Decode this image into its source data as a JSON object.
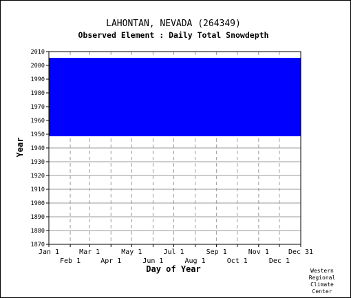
{
  "chart_data": {
    "type": "heatmap",
    "title": "LAHONTAN, NEVADA   (264349)",
    "subtitle": "Observed Element : Daily Total Snowdepth",
    "xlabel": "Day of Year",
    "ylabel": "Year",
    "ylim": [
      1870,
      2010
    ],
    "xlim_days": [
      1,
      366
    ],
    "y_ticks": [
      1870,
      1880,
      1890,
      1900,
      1910,
      1920,
      1930,
      1940,
      1950,
      1960,
      1970,
      1980,
      1990,
      2000,
      2010
    ],
    "x_ticks_top_row": [
      {
        "label": "Jan 1",
        "day": 1
      },
      {
        "label": "Mar 1",
        "day": 60
      },
      {
        "label": "May 1",
        "day": 121
      },
      {
        "label": "Jul 1",
        "day": 182
      },
      {
        "label": "Sep 1",
        "day": 244
      },
      {
        "label": "Nov 1",
        "day": 305
      },
      {
        "label": "Dec 31",
        "day": 366
      }
    ],
    "x_ticks_bottom_row": [
      {
        "label": "Feb 1",
        "day": 32
      },
      {
        "label": "Apr 1",
        "day": 91
      },
      {
        "label": "Jun 1",
        "day": 152
      },
      {
        "label": "Aug 1",
        "day": 213
      },
      {
        "label": "Oct 1",
        "day": 274
      },
      {
        "label": "Dec 1",
        "day": 335
      }
    ],
    "grid": true,
    "data_color": "#0000ff",
    "record_spans": [
      {
        "start_year": 1948,
        "end_year": 2005,
        "note": "observed daily records"
      }
    ],
    "coverage_blocks": [
      {
        "from_year": 1948.5,
        "to_year": 2005.5,
        "from_day": 1,
        "to_day": 366
      }
    ]
  },
  "credit": {
    "lines": [
      "Western",
      "Regional",
      "Climate",
      "Center"
    ]
  }
}
